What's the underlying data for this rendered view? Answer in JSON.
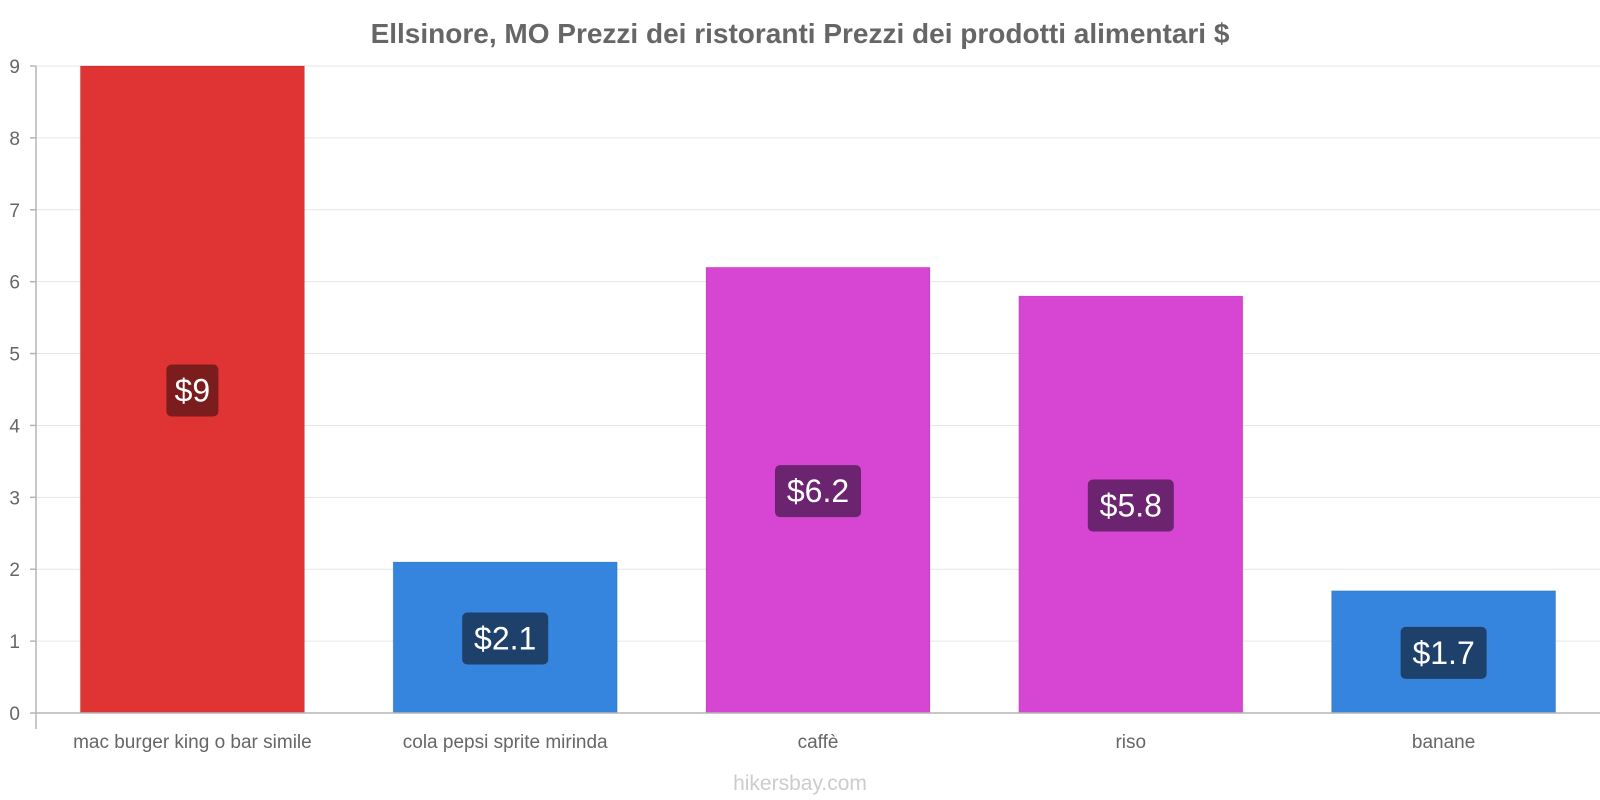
{
  "chart_data": {
    "type": "bar",
    "title": "Ellsinore, MO Prezzi dei ristoranti Prezzi dei prodotti alimentari $",
    "categories": [
      "mac burger king o bar simile",
      "cola pepsi sprite mirinda",
      "caffè",
      "riso",
      "banane"
    ],
    "values": [
      9,
      2.1,
      6.2,
      5.8,
      1.7
    ],
    "value_labels": [
      "$9",
      "$2.1",
      "$6.2",
      "$5.8",
      "$1.7"
    ],
    "bar_colors": [
      "#e03434",
      "#3584dd",
      "#d646d3",
      "#d646d3",
      "#3584dd"
    ],
    "label_bg_colors": [
      "#7b1d1d",
      "#1e416b",
      "#6c2370",
      "#6c2370",
      "#1e416b"
    ],
    "ylim": [
      0,
      9
    ],
    "yticks": [
      0,
      1,
      2,
      3,
      4,
      5,
      6,
      7,
      8,
      9
    ],
    "xlabel": "",
    "ylabel": "",
    "grid": true,
    "legend": "none"
  },
  "footer": {
    "credit": "hikersbay.com"
  }
}
